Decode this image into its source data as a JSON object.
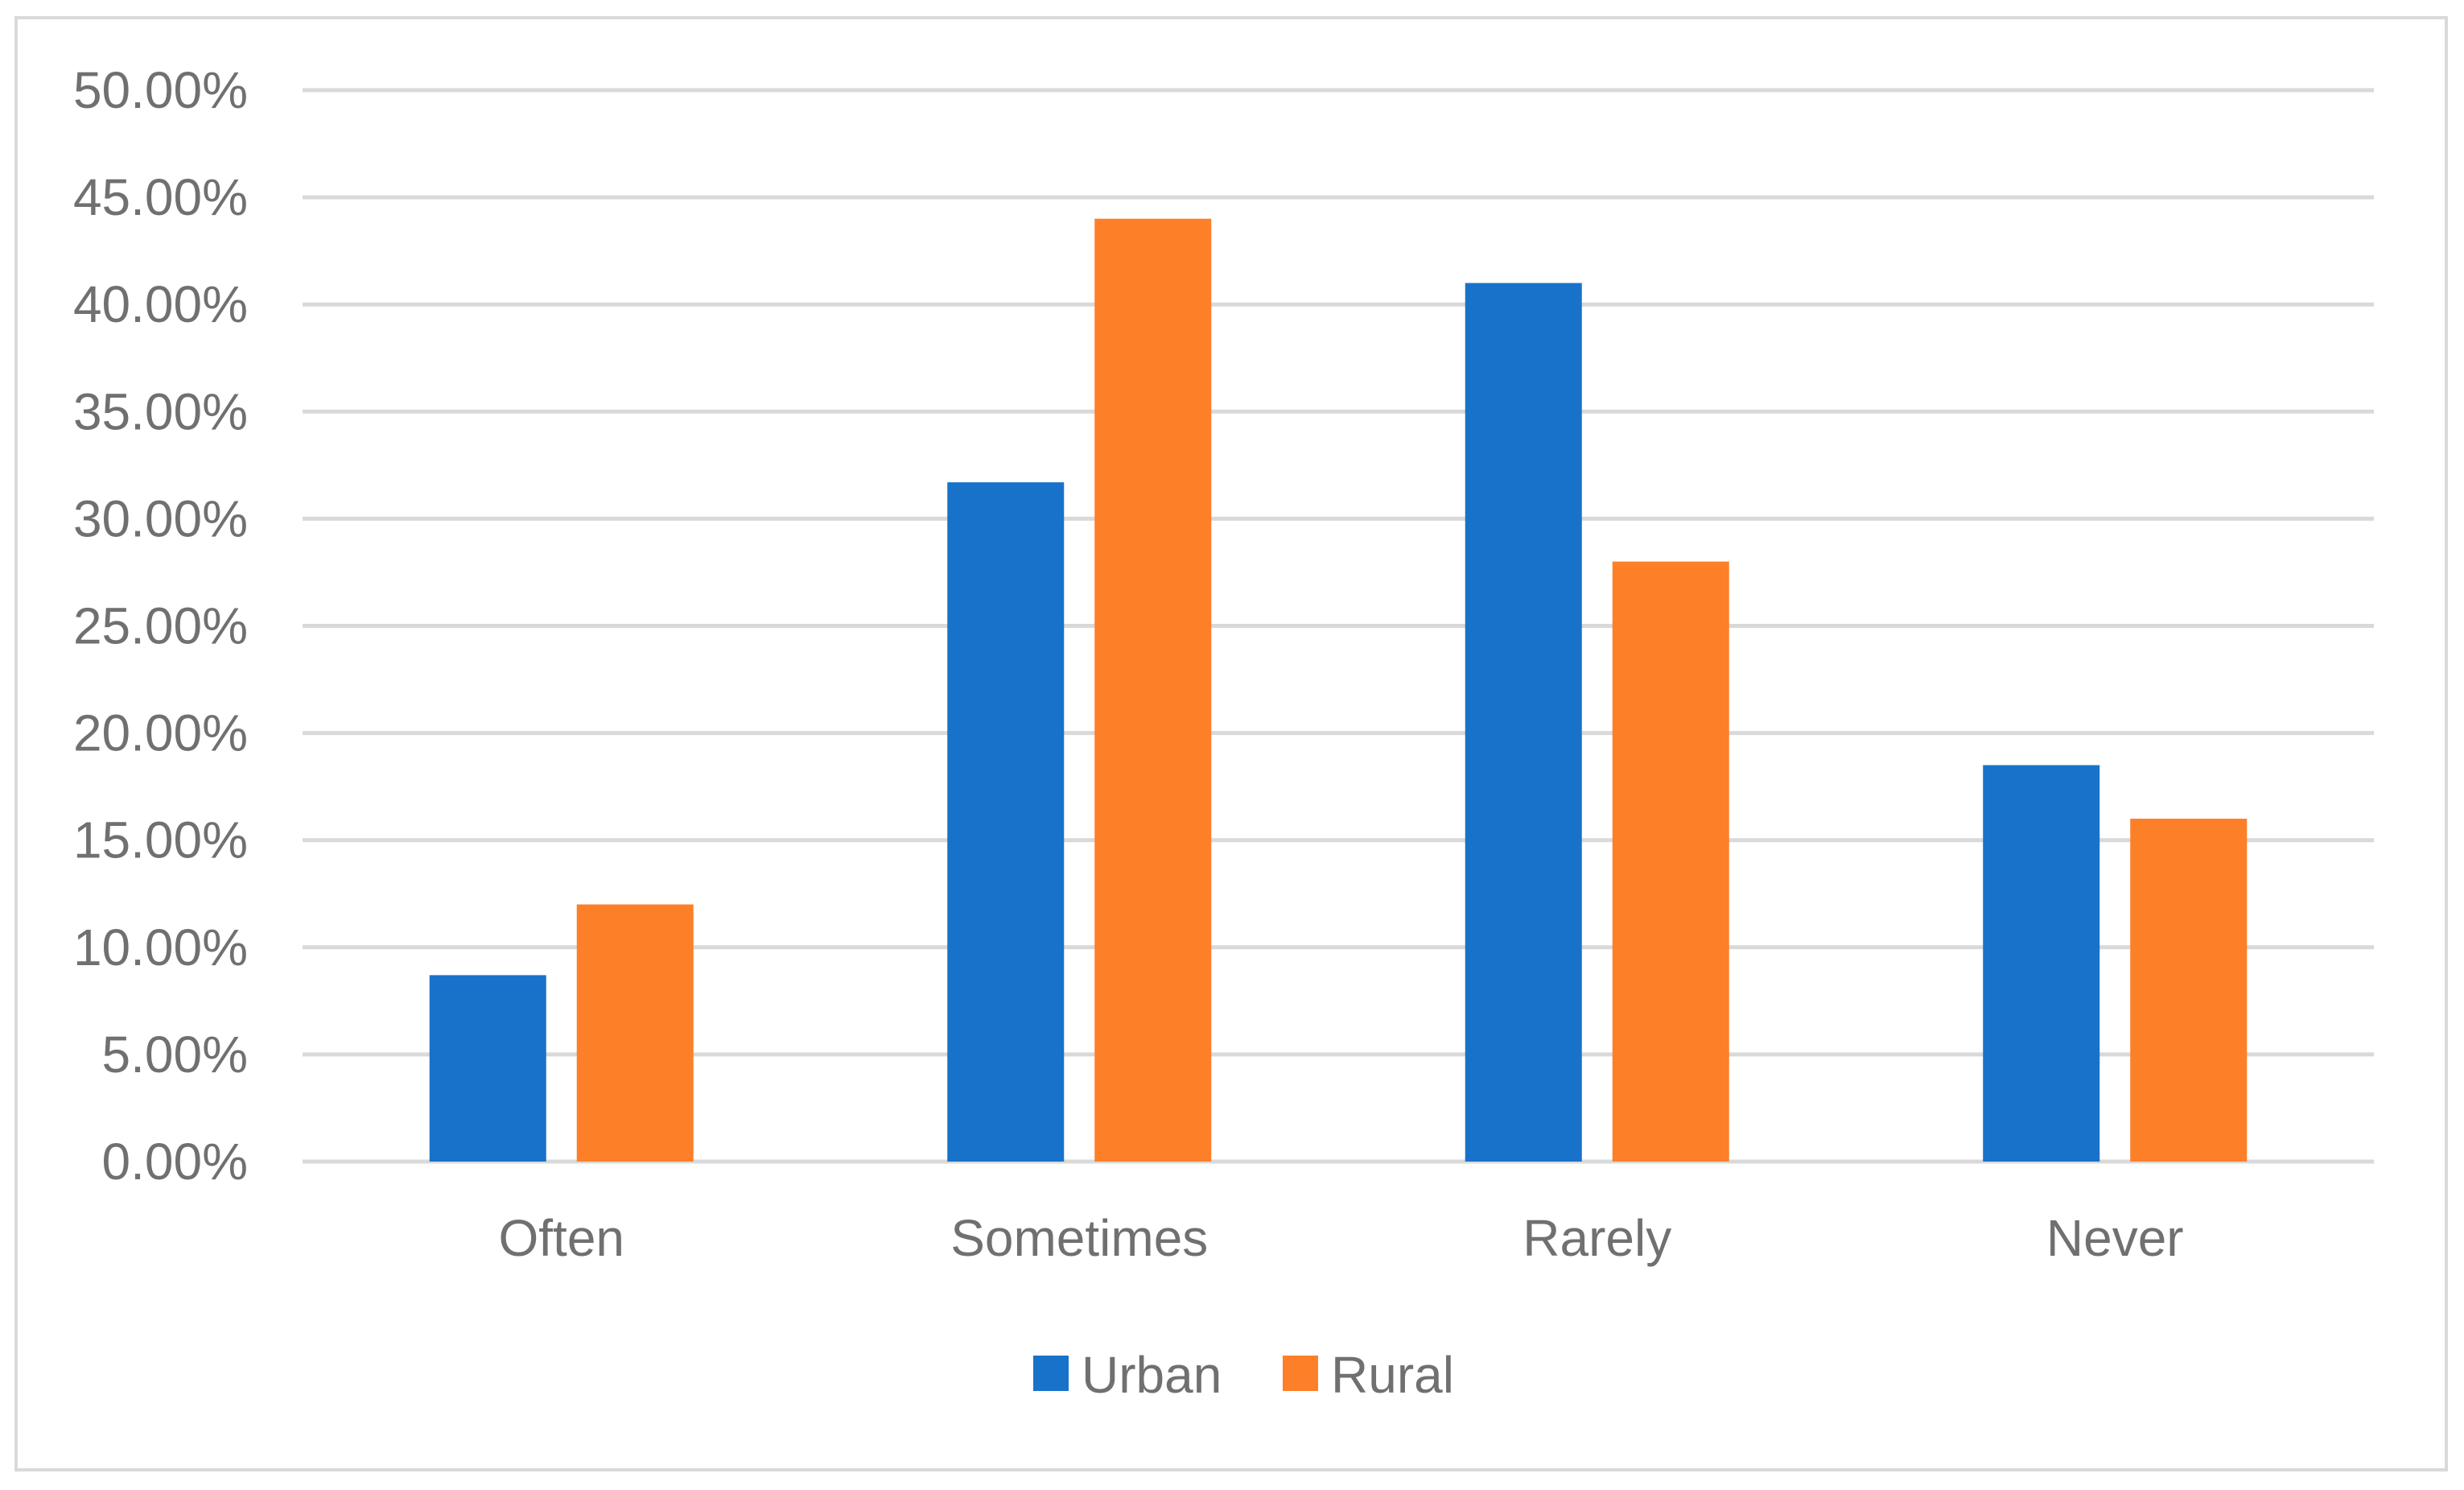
{
  "chart_data": {
    "type": "bar",
    "title": "",
    "xlabel": "",
    "ylabel": "",
    "categories": [
      "Often",
      "Sometimes",
      "Rarely",
      "Never"
    ],
    "series": [
      {
        "name": "Urban",
        "color": "#1872c9",
        "values": [
          8.7,
          31.7,
          41.0,
          18.5
        ]
      },
      {
        "name": "Rural",
        "color": "#fd7f28",
        "values": [
          12.0,
          44.0,
          28.0,
          16.0
        ]
      }
    ],
    "ylim": [
      0,
      50
    ],
    "yticks": [
      0,
      5,
      10,
      15,
      20,
      25,
      30,
      35,
      40,
      45,
      50
    ],
    "ytick_labels": [
      "0.00%",
      "5.00%",
      "10.00%",
      "15.00%",
      "20.00%",
      "25.00%",
      "30.00%",
      "35.00%",
      "40.00%",
      "45.00%",
      "50.00%"
    ],
    "grid": true,
    "legend_position": "bottom",
    "gridline_color": "#d9d9d9",
    "text_color": "#707070"
  }
}
